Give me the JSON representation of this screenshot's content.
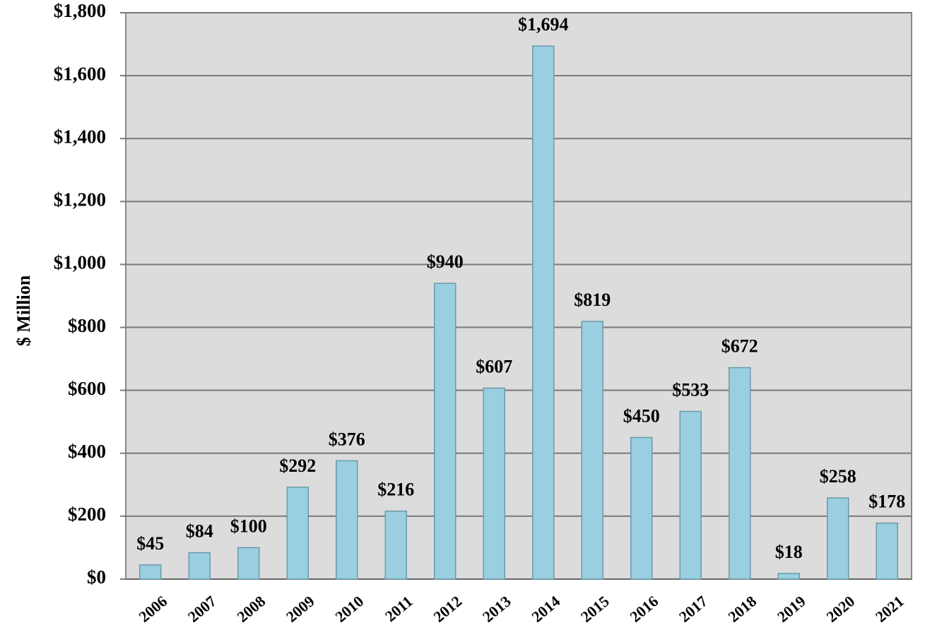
{
  "chart_data": {
    "type": "bar",
    "y_label": "$ Million",
    "categories": [
      "2006",
      "2007",
      "2008",
      "2009",
      "2010",
      "2011",
      "2012",
      "2013",
      "2014",
      "2015",
      "2016",
      "2017",
      "2018",
      "2019",
      "2020",
      "2021"
    ],
    "values": [
      45,
      84,
      100,
      292,
      376,
      216,
      940,
      607,
      1694,
      819,
      450,
      533,
      672,
      18,
      258,
      178
    ],
    "value_labels": [
      "$45",
      "$84",
      "$100",
      "$292",
      "$376",
      "$216",
      "$940",
      "$607",
      "$1,694",
      "$819",
      "$450",
      "$533",
      "$672",
      "$18",
      "$258",
      "$178"
    ],
    "color": "#99cfe0",
    "ylim": [
      0,
      1800
    ],
    "yticks": [
      {
        "value": 0,
        "label": "$0"
      },
      {
        "value": 200,
        "label": "$200"
      },
      {
        "value": 400,
        "label": "$400"
      },
      {
        "value": 600,
        "label": "$600"
      },
      {
        "value": 800,
        "label": "$800"
      },
      {
        "value": 1000,
        "label": "$1,000"
      },
      {
        "value": 1200,
        "label": "$1,200"
      },
      {
        "value": 1400,
        "label": "$1,400"
      },
      {
        "value": 1600,
        "label": "$1,600"
      },
      {
        "value": 1800,
        "label": "$1,800"
      }
    ],
    "grid": true
  }
}
